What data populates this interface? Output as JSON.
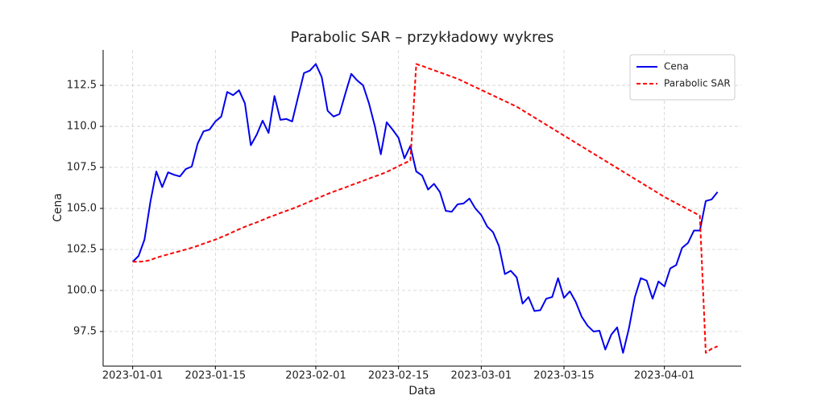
{
  "chart_data": {
    "type": "line",
    "title": "Parabolic SAR – przykładowy wykres",
    "xlabel": "Data",
    "ylabel": "Cena",
    "x": [
      "2023-01-01",
      "2023-01-02",
      "2023-01-03",
      "2023-01-04",
      "2023-01-05",
      "2023-01-06",
      "2023-01-07",
      "2023-01-08",
      "2023-01-09",
      "2023-01-10",
      "2023-01-11",
      "2023-01-12",
      "2023-01-13",
      "2023-01-14",
      "2023-01-15",
      "2023-01-16",
      "2023-01-17",
      "2023-01-18",
      "2023-01-19",
      "2023-01-20",
      "2023-01-21",
      "2023-01-22",
      "2023-01-23",
      "2023-01-24",
      "2023-01-25",
      "2023-01-26",
      "2023-01-27",
      "2023-01-28",
      "2023-01-29",
      "2023-01-30",
      "2023-01-31",
      "2023-02-01",
      "2023-02-02",
      "2023-02-03",
      "2023-02-04",
      "2023-02-05",
      "2023-02-06",
      "2023-02-07",
      "2023-02-08",
      "2023-02-09",
      "2023-02-10",
      "2023-02-11",
      "2023-02-12",
      "2023-02-13",
      "2023-02-14",
      "2023-02-15",
      "2023-02-16",
      "2023-02-17",
      "2023-02-18",
      "2023-02-19",
      "2023-02-20",
      "2023-02-21",
      "2023-02-22",
      "2023-02-23",
      "2023-02-24",
      "2023-02-25",
      "2023-02-26",
      "2023-02-27",
      "2023-02-28",
      "2023-03-01",
      "2023-03-02",
      "2023-03-03",
      "2023-03-04",
      "2023-03-05",
      "2023-03-06",
      "2023-03-07",
      "2023-03-08",
      "2023-03-09",
      "2023-03-10",
      "2023-03-11",
      "2023-03-12",
      "2023-03-13",
      "2023-03-14",
      "2023-03-15",
      "2023-03-16",
      "2023-03-17",
      "2023-03-18",
      "2023-03-19",
      "2023-03-20",
      "2023-03-21",
      "2023-03-22",
      "2023-03-23",
      "2023-03-24",
      "2023-03-25",
      "2023-03-26",
      "2023-03-27",
      "2023-03-28",
      "2023-03-29",
      "2023-03-30",
      "2023-03-31",
      "2023-04-01",
      "2023-04-02",
      "2023-04-03",
      "2023-04-04",
      "2023-04-05",
      "2023-04-06",
      "2023-04-07",
      "2023-04-08",
      "2023-04-09",
      "2023-04-10"
    ],
    "series": [
      {
        "name": "Cena",
        "color": "#0000ee",
        "linestyle": "solid",
        "values": [
          101.75,
          102.1,
          103.1,
          105.4,
          107.25,
          106.3,
          107.2,
          107.05,
          106.95,
          107.4,
          107.55,
          108.95,
          109.7,
          109.8,
          110.3,
          110.6,
          112.1,
          111.9,
          112.2,
          111.4,
          108.85,
          109.5,
          110.35,
          109.6,
          111.85,
          110.4,
          110.45,
          110.3,
          111.8,
          113.25,
          113.4,
          113.8,
          113.0,
          110.95,
          110.6,
          110.75,
          112.0,
          113.2,
          112.8,
          112.5,
          111.4,
          110.0,
          108.3,
          110.25,
          109.8,
          109.3,
          108.05,
          108.8,
          107.25,
          107.0,
          106.15,
          106.5,
          106.0,
          104.85,
          104.8,
          105.25,
          105.3,
          105.6,
          105.0,
          104.6,
          103.9,
          103.55,
          102.7,
          101.0,
          101.2,
          100.8,
          99.2,
          99.6,
          98.75,
          98.8,
          99.5,
          99.6,
          100.75,
          99.55,
          99.95,
          99.3,
          98.4,
          97.85,
          97.5,
          97.55,
          96.4,
          97.3,
          97.75,
          96.2,
          97.7,
          99.6,
          100.75,
          100.6,
          99.5,
          100.55,
          100.25,
          101.35,
          101.55,
          102.6,
          102.9,
          103.65,
          103.65,
          105.45,
          105.55,
          106.0
        ]
      },
      {
        "name": "Parabolic SAR",
        "color": "#ff0000",
        "linestyle": "dashed",
        "values": [
          101.75,
          101.75,
          101.78,
          101.85,
          102.0,
          102.1,
          102.2,
          102.3,
          102.4,
          102.5,
          102.6,
          102.72,
          102.85,
          102.98,
          103.1,
          103.25,
          103.4,
          103.57,
          103.73,
          103.88,
          104.02,
          104.15,
          104.3,
          104.45,
          104.58,
          104.72,
          104.85,
          104.98,
          105.12,
          105.27,
          105.42,
          105.58,
          105.73,
          105.88,
          106.02,
          106.15,
          106.28,
          106.42,
          106.55,
          106.68,
          106.82,
          106.95,
          107.08,
          107.22,
          107.4,
          107.58,
          107.75,
          107.92,
          113.8,
          113.68,
          113.55,
          113.42,
          113.29,
          113.16,
          113.03,
          112.9,
          112.73,
          112.56,
          112.39,
          112.22,
          112.05,
          111.88,
          111.71,
          111.54,
          111.37,
          111.2,
          110.98,
          110.76,
          110.54,
          110.32,
          110.1,
          109.88,
          109.66,
          109.44,
          109.22,
          109.0,
          108.78,
          108.56,
          108.34,
          108.12,
          107.9,
          107.68,
          107.46,
          107.24,
          107.02,
          106.8,
          106.58,
          106.36,
          106.14,
          105.92,
          105.7,
          105.51,
          105.32,
          105.13,
          104.94,
          104.75,
          104.56,
          96.2,
          96.45,
          96.6
        ]
      }
    ],
    "xlim": [
      "2022-12-27",
      "2023-04-14"
    ],
    "xticks": [
      "2023-01-01",
      "2023-01-15",
      "2023-02-01",
      "2023-02-15",
      "2023-03-01",
      "2023-03-15",
      "2023-04-01"
    ],
    "ylim": [
      95.39,
      114.66
    ],
    "yticks": [
      97.5,
      {
        "value": 100,
        "label": "100.0"
      },
      102.5,
      {
        "value": 105,
        "label": "105.0"
      },
      107.5,
      {
        "value": 110,
        "label": "110.0"
      },
      112.5
    ],
    "grid": true,
    "legend": "upper right"
  }
}
